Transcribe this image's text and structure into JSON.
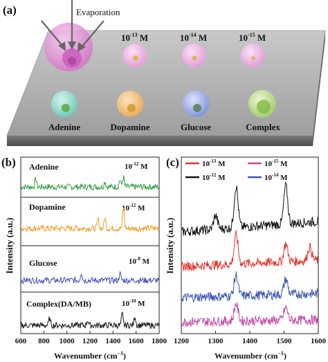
{
  "panel_a": {
    "label": "(a)",
    "evaporation": "Evaporation",
    "conc_labels": [
      "10",
      "10",
      "10"
    ],
    "conc_exps": [
      "-13",
      "-14",
      "-15"
    ],
    "conc_unit": "M",
    "analytes": [
      "Adenine",
      "Dopamine",
      "Glucose",
      "Complex"
    ]
  },
  "panel_b": {
    "label": "(b)",
    "ylabel": "Intensity (a.u.)",
    "xlabel": "Wavenumber (cm",
    "xlabel_sup": "−1",
    "xlabel_end": ")",
    "xticks": [
      "600",
      "800",
      "1000",
      "1200",
      "1400",
      "1600",
      "1800"
    ],
    "traces": [
      {
        "name": "Adenine",
        "conc_base": "10",
        "conc_exp": "-12",
        "unit": "M",
        "color": "#2e9a3e"
      },
      {
        "name": "Dopamine",
        "conc_base": "10",
        "conc_exp": "-12",
        "unit": "M",
        "color": "#f39a1e"
      },
      {
        "name": "Glucose",
        "conc_base": "10",
        "conc_exp": "-8",
        "unit": "M",
        "color": "#3a55b4"
      },
      {
        "name": "Complex(DA/MB)",
        "conc_base": "10",
        "conc_exp": "-10",
        "unit": "M",
        "color": "#111111"
      }
    ]
  },
  "panel_c": {
    "label": "(c)",
    "ylabel": "Intensity (a.u.)",
    "xlabel": "Wavenumber (cm",
    "xlabel_sup": "−1",
    "xlabel_end": ")",
    "xticks": [
      "1200",
      "1300",
      "1400",
      "1500",
      "1600"
    ],
    "legend": [
      {
        "base": "10",
        "exp": "-13",
        "unit": "M",
        "color": "#e3342f"
      },
      {
        "base": "10",
        "exp": "-15",
        "unit": "M",
        "color": "#c04aa6"
      },
      {
        "base": "10",
        "exp": "-12",
        "unit": "M",
        "color": "#111111"
      },
      {
        "base": "10",
        "exp": "-14",
        "unit": "M",
        "color": "#3a55b4"
      }
    ]
  },
  "chart_data": [
    {
      "type": "line",
      "panel": "b",
      "xlabel": "Wavenumber (cm−1)",
      "ylabel": "Intensity (a.u.)",
      "xlim": [
        600,
        1800
      ],
      "series": [
        {
          "name": "Adenine",
          "peaks_x": [
            730,
            1330,
            1460,
            1490
          ]
        },
        {
          "name": "Dopamine",
          "peaks_x": [
            1270,
            1330,
            1490
          ]
        },
        {
          "name": "Glucose",
          "peaks_x": [
            1125,
            1460
          ]
        },
        {
          "name": "Complex(DA/MB)",
          "peaks_x": [
            850,
            1180,
            1480,
            1590
          ]
        }
      ]
    },
    {
      "type": "line",
      "panel": "c",
      "xlabel": "Wavenumber (cm−1)",
      "ylabel": "Intensity (a.u.)",
      "xlim": [
        1200,
        1600
      ],
      "series": [
        {
          "name": "10-12 M",
          "peaks_x": [
            1300,
            1360,
            1505
          ]
        },
        {
          "name": "10-13 M",
          "peaks_x": [
            1360,
            1505,
            1575
          ]
        },
        {
          "name": "10-14 M",
          "peaks_x": [
            1360,
            1505
          ]
        },
        {
          "name": "10-15 M",
          "peaks_x": [
            1360,
            1505
          ]
        }
      ]
    }
  ]
}
